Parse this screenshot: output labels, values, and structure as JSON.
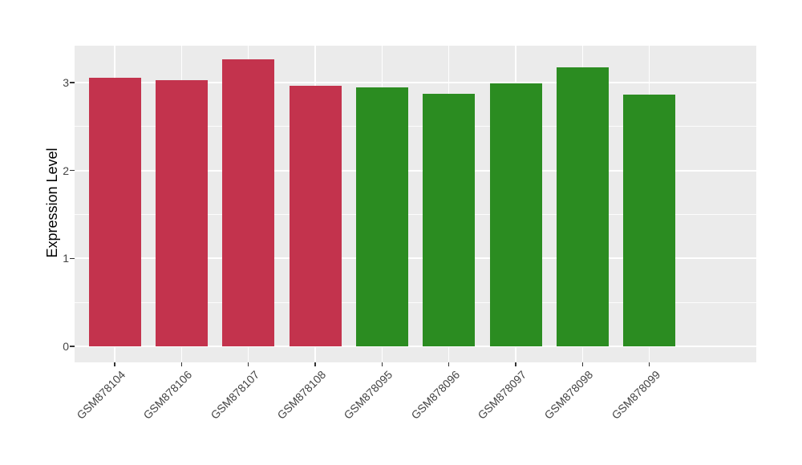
{
  "chart_data": {
    "type": "bar",
    "title": "",
    "xlabel": "",
    "ylabel": "Expression Level",
    "categories": [
      "GSM878104",
      "GSM878106",
      "GSM878107",
      "GSM878108",
      "GSM878095",
      "GSM878096",
      "GSM878097",
      "GSM878098",
      "GSM878099"
    ],
    "values": [
      3.05,
      3.03,
      3.26,
      2.96,
      2.94,
      2.87,
      2.99,
      3.17,
      2.86
    ],
    "bar_colors": [
      "#C3334D",
      "#C3334D",
      "#C3334D",
      "#C3334D",
      "#2B8C21",
      "#2B8C21",
      "#2B8C21",
      "#2B8C21",
      "#2B8C21"
    ],
    "yticks": [
      0,
      1,
      2,
      3
    ],
    "ylim": [
      -0.18,
      3.42
    ],
    "grid": true,
    "legend": "none",
    "panel_background": "#EBEBEB",
    "figure_background": "#FFFFFF",
    "grid_color": "#FFFFFF",
    "tick_color": "#333333",
    "tick_label_color": "#444444",
    "axis_title_color": "#000000"
  }
}
